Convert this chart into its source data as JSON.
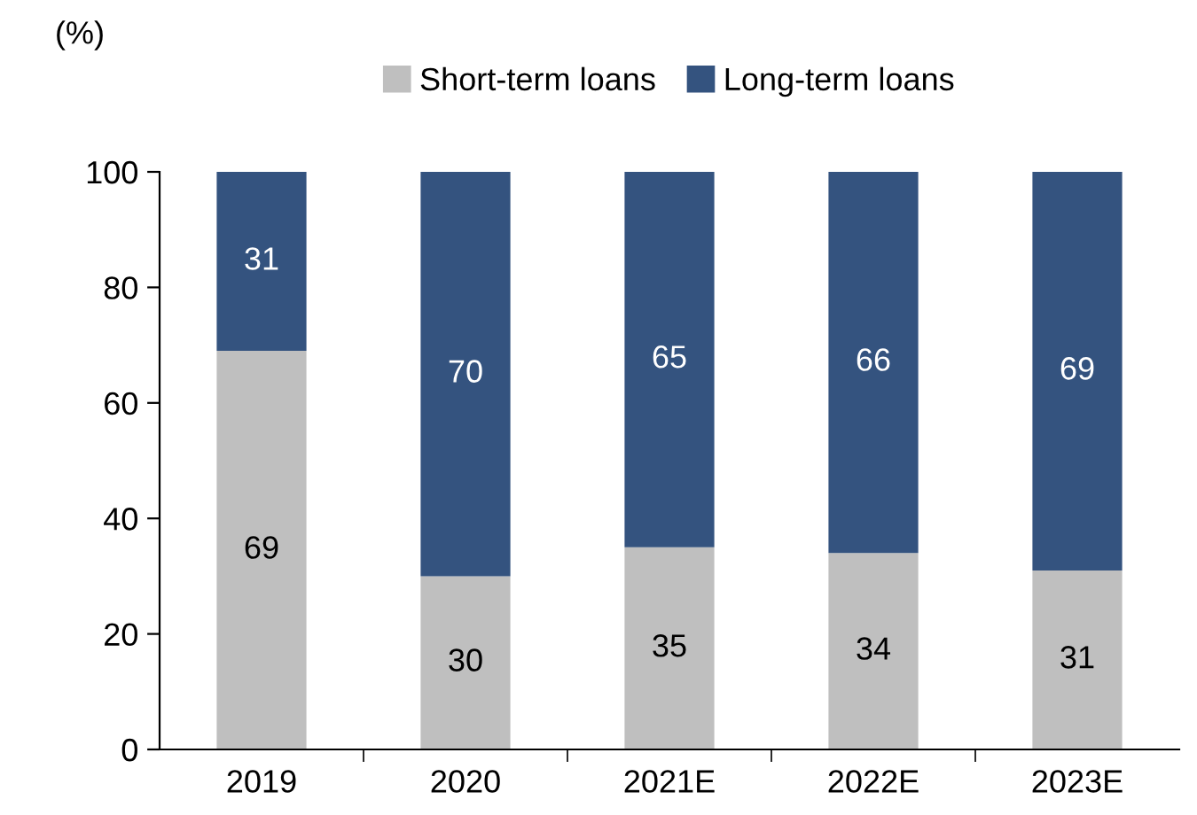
{
  "chart_data": {
    "type": "bar",
    "stacked": true,
    "ylabel": "(%)",
    "categories": [
      "2019",
      "2020",
      "2021E",
      "2022E",
      "2023E"
    ],
    "series": [
      {
        "name": "Short-term loans",
        "color": "#bfbfbf",
        "values": [
          69,
          30,
          35,
          34,
          31
        ]
      },
      {
        "name": "Long-term loans",
        "color": "#34537f",
        "values": [
          31,
          70,
          65,
          66,
          69
        ]
      }
    ],
    "ylim": [
      0,
      100
    ],
    "yticks": [
      0,
      20,
      40,
      60,
      80,
      100
    ],
    "data_labels": true,
    "legend": "top",
    "grid": false
  }
}
